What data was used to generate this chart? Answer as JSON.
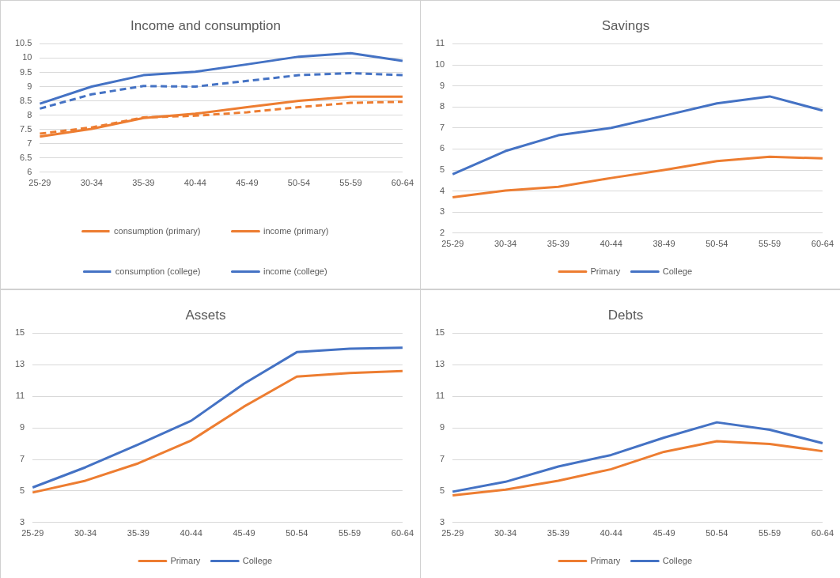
{
  "chart_data": [
    {
      "type": "line",
      "title": "Income and consumption",
      "categories": [
        "25-29",
        "30-34",
        "35-39",
        "40-44",
        "45-49",
        "50-54",
        "55-59",
        "60-64"
      ],
      "ylim": [
        6,
        10.5
      ],
      "yticks": [
        6,
        6.5,
        7,
        7.5,
        8,
        8.5,
        9,
        9.5,
        10,
        10.5
      ],
      "grid": "y",
      "legend": "bottom",
      "marker": "none",
      "series": [
        {
          "name": "consumption (primary)",
          "color": "#ed7d31",
          "line_style": "dashed",
          "values": [
            7.35,
            7.57,
            7.92,
            7.98,
            8.1,
            8.28,
            8.43,
            8.47
          ]
        },
        {
          "name": "income (primary)",
          "color": "#ed7d31",
          "line_style": "solid",
          "values": [
            7.25,
            7.52,
            7.9,
            8.05,
            8.28,
            8.5,
            8.65,
            8.65
          ]
        },
        {
          "name": "consumption (college)",
          "color": "#4472c4",
          "line_style": "dashed",
          "values": [
            8.23,
            8.73,
            9.02,
            9.0,
            9.2,
            9.4,
            9.47,
            9.4
          ]
        },
        {
          "name": "income (college)",
          "color": "#4472c4",
          "line_style": "solid",
          "values": [
            8.4,
            9.0,
            9.4,
            9.52,
            9.78,
            10.05,
            10.17,
            9.9
          ]
        }
      ]
    },
    {
      "type": "line",
      "title": "Savings",
      "categories": [
        "25-29",
        "30-34",
        "35-39",
        "40-44",
        "38-49",
        "50-54",
        "55-59",
        "60-64"
      ],
      "ylim": [
        2,
        11
      ],
      "yticks": [
        2,
        3,
        4,
        5,
        6,
        7,
        8,
        9,
        10,
        11
      ],
      "grid": "y",
      "legend": "bottom",
      "marker": "none",
      "series": [
        {
          "name": "Primary",
          "color": "#ed7d31",
          "values": [
            3.7,
            4.02,
            4.2,
            4.62,
            5.0,
            5.42,
            5.63,
            5.55
          ]
        },
        {
          "name": "College",
          "color": "#4472c4",
          "values": [
            4.8,
            5.9,
            6.65,
            7.0,
            7.58,
            8.17,
            8.5,
            7.83
          ]
        }
      ]
    },
    {
      "type": "line",
      "title": "Assets",
      "categories": [
        "25-29",
        "30-34",
        "35-39",
        "40-44",
        "45-49",
        "50-54",
        "55-59",
        "60-64"
      ],
      "ylim": [
        3,
        15
      ],
      "yticks": [
        3,
        5,
        7,
        9,
        11,
        13,
        15
      ],
      "grid": "y",
      "legend": "bottom",
      "marker": "none",
      "series": [
        {
          "name": "Primary",
          "color": "#ed7d31",
          "values": [
            4.9,
            5.65,
            6.75,
            8.2,
            10.35,
            12.25,
            12.48,
            12.6
          ]
        },
        {
          "name": "College",
          "color": "#4472c4",
          "values": [
            5.22,
            6.5,
            7.95,
            9.45,
            11.8,
            13.8,
            14.02,
            14.08
          ]
        }
      ]
    },
    {
      "type": "line",
      "title": "Debts",
      "categories": [
        "25-29",
        "30-34",
        "35-39",
        "40-44",
        "45-49",
        "50-54",
        "55-59",
        "60-64"
      ],
      "ylim": [
        3,
        15
      ],
      "yticks": [
        3,
        5,
        7,
        9,
        11,
        13,
        15
      ],
      "grid": "y",
      "legend": "bottom",
      "marker": "none",
      "series": [
        {
          "name": "Primary",
          "color": "#ed7d31",
          "values": [
            4.72,
            5.08,
            5.65,
            6.38,
            7.48,
            8.15,
            7.98,
            7.52
          ]
        },
        {
          "name": "College",
          "color": "#4472c4",
          "values": [
            4.95,
            5.58,
            6.55,
            7.28,
            8.38,
            9.35,
            8.88,
            8.03
          ]
        }
      ]
    }
  ]
}
